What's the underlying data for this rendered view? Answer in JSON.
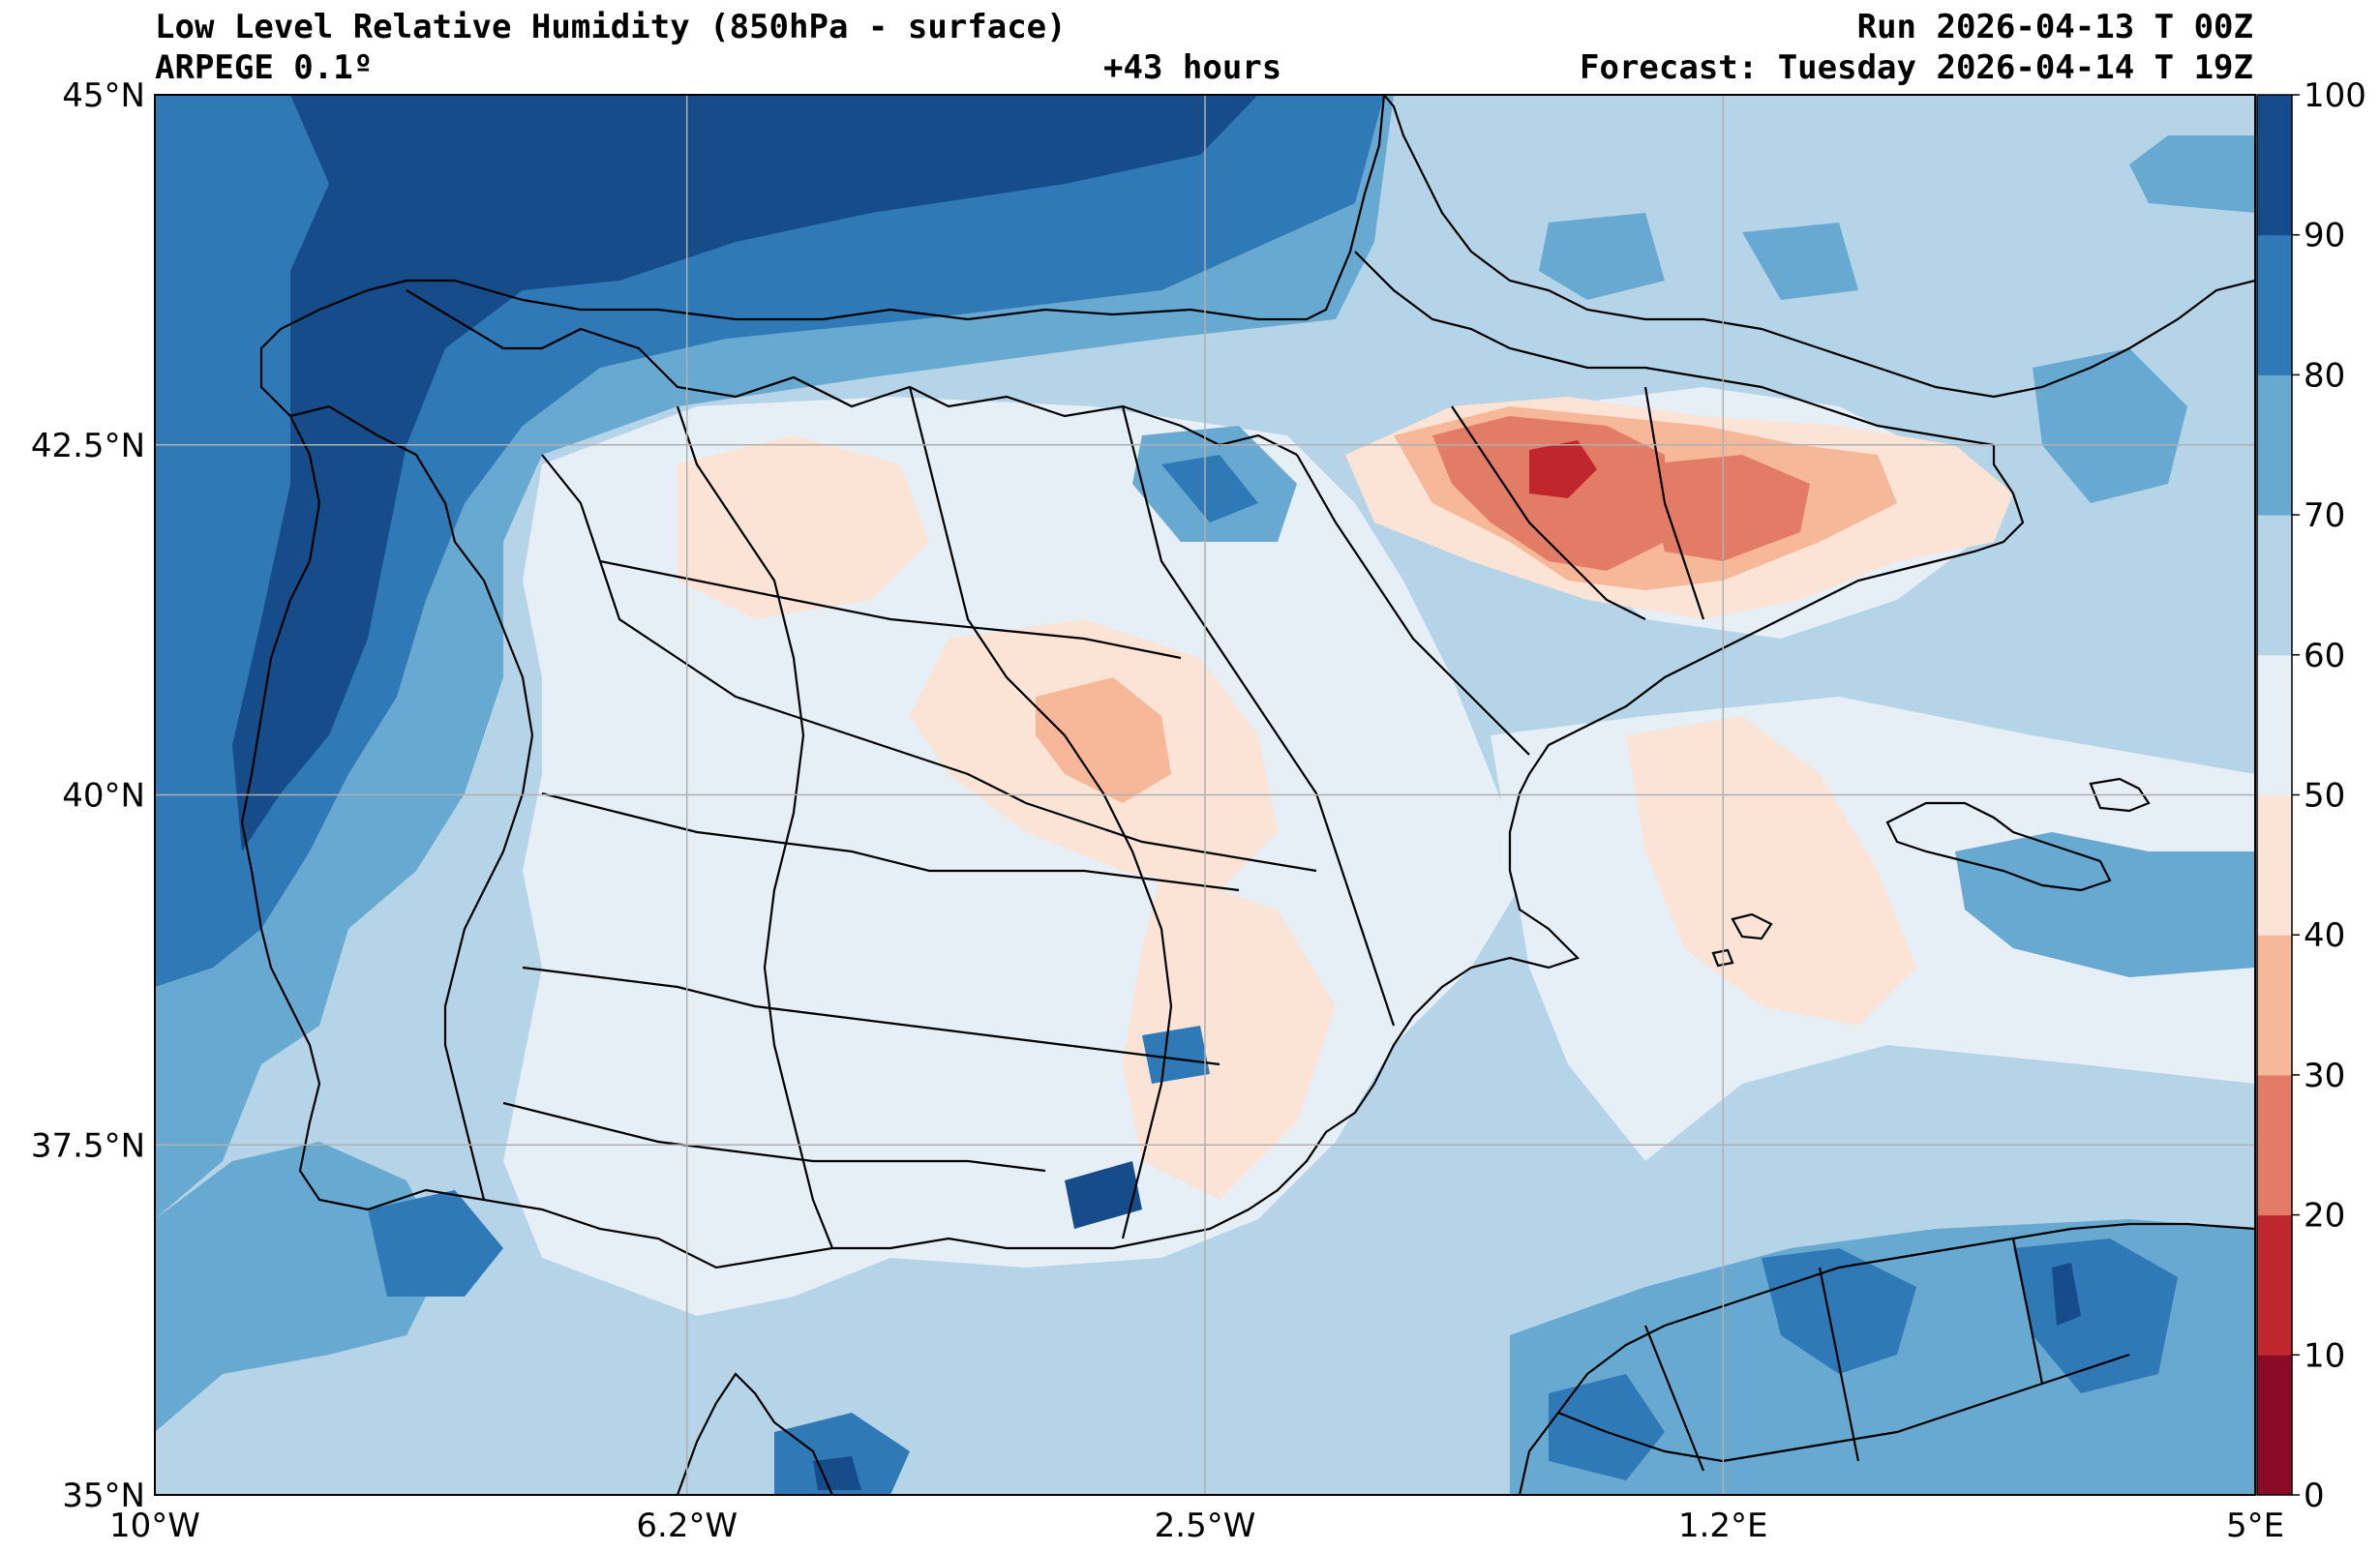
{
  "header": {
    "title": "Low Level Relative Humidity (850hPa - surface)",
    "model": "ARPEGE 0.1º",
    "lead_time": "+43 hours",
    "run": "Run 2026-04-13 T 00Z",
    "forecast": "Forecast: Tuesday 2026-04-14 T 19Z"
  },
  "map": {
    "extent": {
      "lon_min": -10,
      "lon_max": 5,
      "lat_min": 35,
      "lat_max": 45
    },
    "lon_ticks": [
      {
        "value": -10,
        "label": "10°W"
      },
      {
        "value": -6.2,
        "label": "6.2°W"
      },
      {
        "value": -2.5,
        "label": "2.5°W"
      },
      {
        "value": 1.2,
        "label": "1.2°E"
      },
      {
        "value": 5,
        "label": "5°E"
      }
    ],
    "lat_ticks": [
      {
        "value": 45,
        "label": "45°N"
      },
      {
        "value": 42.5,
        "label": "42.5°N"
      },
      {
        "value": 40,
        "label": "40°N"
      },
      {
        "value": 37.5,
        "label": "37.5°N"
      },
      {
        "value": 35,
        "label": "35°N"
      }
    ]
  },
  "colorbar": {
    "levels": [
      "0",
      "10",
      "20",
      "30",
      "40",
      "50",
      "60",
      "70",
      "80",
      "90",
      "100"
    ],
    "colors": [
      "#8b0a26",
      "#c0272d",
      "#e27c66",
      "#f7b799",
      "#fbe3d6",
      "#e6eef6",
      "#b6d4e8",
      "#67a9d0",
      "#2f79b7",
      "#154c89"
    ]
  }
}
